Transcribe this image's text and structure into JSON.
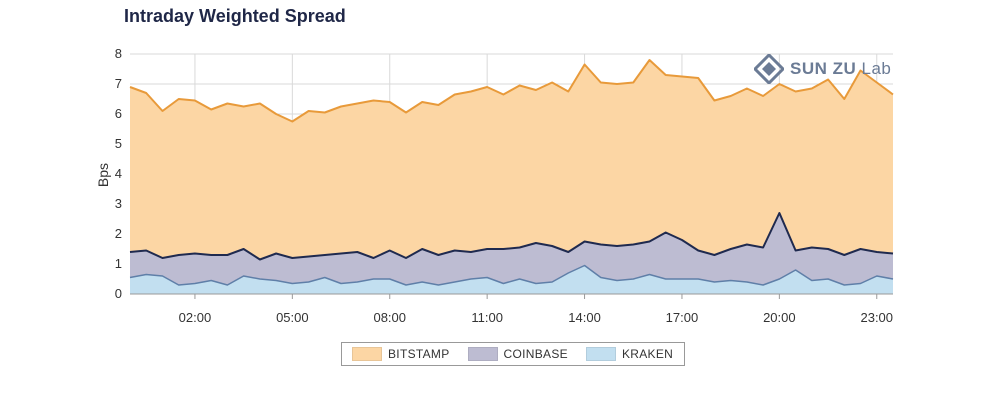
{
  "title": "Intraday Weighted Spread",
  "watermark": {
    "brand": "SUN ZU",
    "suffix": "Lab",
    "icon": "sunzu-logo-icon",
    "color": "#6b7b95"
  },
  "colors": {
    "bitstamp_fill": "#fcd6a4",
    "bitstamp_line": "#e89a3a",
    "coinbase_fill": "#bdbcd2",
    "coinbase_line": "#1f2a4f",
    "kraken_fill": "#c2dff0",
    "kraken_line": "#5f7fa8",
    "grid": "#d9d9d9"
  },
  "chart_data": {
    "type": "area",
    "ylabel": "Bps",
    "xlabel": "",
    "ylim": [
      0,
      8
    ],
    "yticks": [
      "0",
      "1",
      "2",
      "3",
      "4",
      "5",
      "6",
      "7",
      "8"
    ],
    "xticks": [
      "02:00",
      "05:00",
      "08:00",
      "11:00",
      "14:00",
      "17:00",
      "20:00",
      "23:00"
    ],
    "xtick_hours": [
      2,
      5,
      8,
      11,
      14,
      17,
      20,
      23
    ],
    "xlim": [
      0,
      23.5
    ],
    "x": [
      0,
      0.5,
      1,
      1.5,
      2,
      2.5,
      3,
      3.5,
      4,
      4.5,
      5,
      5.5,
      6,
      6.5,
      7,
      7.5,
      8,
      8.5,
      9,
      9.5,
      10,
      10.5,
      11,
      11.5,
      12,
      12.5,
      13,
      13.5,
      14,
      14.5,
      15,
      15.5,
      16,
      16.5,
      17,
      17.5,
      18,
      18.5,
      19,
      19.5,
      20,
      20.5,
      21,
      21.5,
      22,
      22.5,
      23,
      23.5
    ],
    "grid": true,
    "legend_position": "bottom-center",
    "series": [
      {
        "name": "BITSTAMP",
        "values": [
          6.9,
          6.7,
          6.1,
          6.5,
          6.45,
          6.15,
          6.35,
          6.25,
          6.35,
          6.0,
          5.75,
          6.1,
          6.05,
          6.25,
          6.35,
          6.45,
          6.4,
          6.05,
          6.4,
          6.3,
          6.65,
          6.75,
          6.9,
          6.65,
          6.95,
          6.8,
          7.05,
          6.75,
          7.65,
          7.05,
          7.0,
          7.05,
          7.8,
          7.3,
          7.25,
          7.2,
          6.45,
          6.6,
          6.85,
          6.6,
          7.0,
          6.75,
          6.85,
          7.15,
          6.5,
          7.45,
          7.05,
          6.65
        ]
      },
      {
        "name": "COINBASE",
        "values": [
          1.4,
          1.45,
          1.2,
          1.3,
          1.35,
          1.3,
          1.3,
          1.5,
          1.15,
          1.35,
          1.2,
          1.25,
          1.3,
          1.35,
          1.4,
          1.2,
          1.45,
          1.2,
          1.5,
          1.3,
          1.45,
          1.4,
          1.5,
          1.5,
          1.55,
          1.7,
          1.6,
          1.4,
          1.75,
          1.65,
          1.6,
          1.65,
          1.75,
          2.05,
          1.8,
          1.45,
          1.3,
          1.5,
          1.65,
          1.55,
          2.7,
          1.45,
          1.55,
          1.5,
          1.3,
          1.5,
          1.4,
          1.35
        ]
      },
      {
        "name": "KRAKEN",
        "values": [
          0.55,
          0.65,
          0.6,
          0.3,
          0.35,
          0.45,
          0.3,
          0.6,
          0.5,
          0.45,
          0.35,
          0.4,
          0.55,
          0.35,
          0.4,
          0.5,
          0.5,
          0.3,
          0.4,
          0.3,
          0.4,
          0.5,
          0.55,
          0.35,
          0.5,
          0.35,
          0.4,
          0.7,
          0.95,
          0.55,
          0.45,
          0.5,
          0.65,
          0.5,
          0.5,
          0.5,
          0.4,
          0.45,
          0.4,
          0.3,
          0.5,
          0.8,
          0.45,
          0.5,
          0.3,
          0.35,
          0.6,
          0.5
        ]
      }
    ]
  }
}
